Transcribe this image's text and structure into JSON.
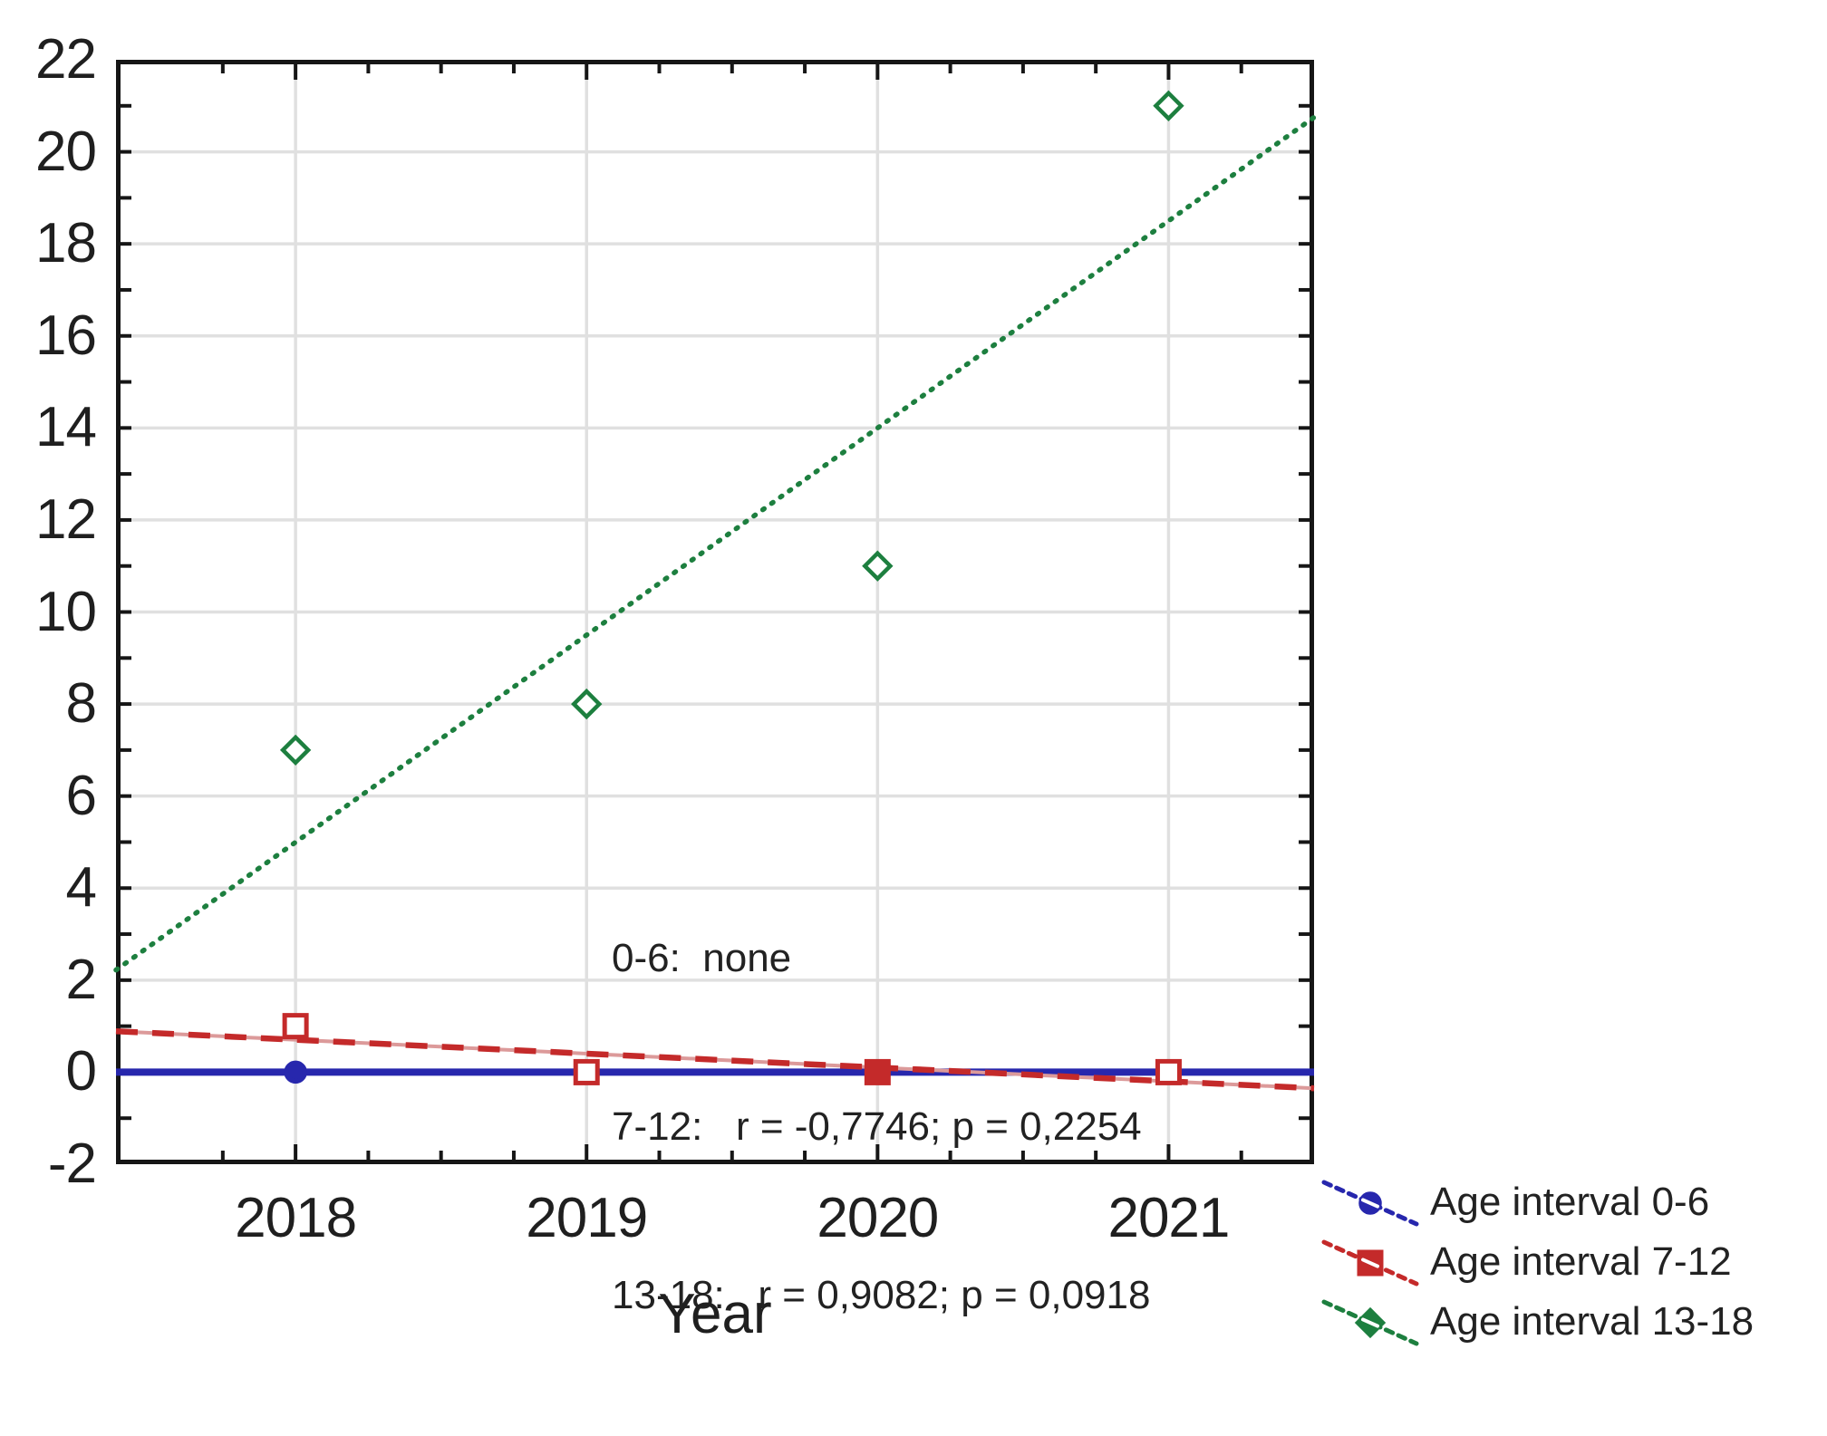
{
  "chart_data": {
    "type": "scatter",
    "title": "",
    "xlabel": "Year",
    "ylabel": "",
    "grid": true,
    "legend_position": "bottom-right",
    "xlim": [
      2017.383,
      2021.5
    ],
    "ylim": [
      -2,
      22
    ],
    "x": [
      2018,
      2019,
      2020,
      2021
    ],
    "x_tick_labels": [
      "2018",
      "2019",
      "2020",
      "2021"
    ],
    "y_tick_values": [
      22,
      20,
      18,
      16,
      14,
      12,
      10,
      8,
      6,
      4,
      2,
      0,
      -2
    ],
    "y_tick_labels": [
      "22",
      "20",
      "18",
      "16",
      "14",
      "12",
      "10",
      "8",
      "6",
      "4",
      "2",
      "0",
      "-2"
    ],
    "y_gridline_values": [
      20,
      18,
      16,
      14,
      12,
      10,
      8,
      6,
      4,
      2,
      0
    ],
    "minor_tick_step_x": 0.25,
    "minor_tick_step_y": 1,
    "series": [
      {
        "name": "Age interval 0-6",
        "color": "#2727ad",
        "marker": "circle",
        "marker_fill": "solid",
        "line_style": "solid",
        "values": [
          0,
          0,
          0,
          0
        ],
        "trend_x": [
          2017.383,
          2021.5
        ],
        "trend_y": [
          0,
          0
        ],
        "filled_points": [
          0,
          1,
          2,
          3
        ]
      },
      {
        "name": "Age interval 7-12",
        "color": "#c42a2a",
        "color_light": "#dc9a9a",
        "marker": "square",
        "marker_fill": "open",
        "line_style": "dashed",
        "values": [
          1,
          0,
          0,
          0
        ],
        "trend_x": [
          2017.383,
          2021.5
        ],
        "trend_y": [
          0.89,
          -0.35
        ],
        "filled_points": [
          2
        ]
      },
      {
        "name": "Age interval 13-18",
        "color": "#1d7f3f",
        "marker": "diamond",
        "marker_fill": "open",
        "line_style": "dotted",
        "values": [
          7,
          8,
          11,
          21
        ],
        "trend_x": [
          2017.383,
          2021.5
        ],
        "trend_y": [
          2.22,
          20.75
        ],
        "filled_points": []
      }
    ],
    "annotation": {
      "lines": [
        "0-6:  none",
        "7-12:   r = -0,7746; p = 0,2254",
        "13-18:   r = 0,9082; p = 0,0918"
      ]
    }
  },
  "colors": {
    "background": "#ffffff",
    "grid": "#e0e0e0",
    "axis": "#161616",
    "text": "#1f1f1f"
  }
}
